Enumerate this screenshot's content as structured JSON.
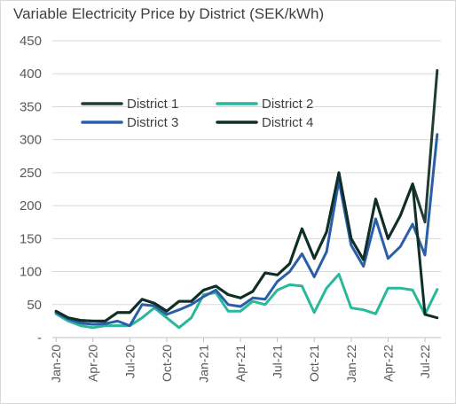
{
  "chart_data": {
    "type": "line",
    "title": "Variable Electricity Price by District (SEK/kWh)",
    "xlabel": "",
    "ylabel": "",
    "ylim": [
      0,
      450
    ],
    "y_ticks": [
      "-",
      "50",
      "100",
      "150",
      "200",
      "250",
      "300",
      "350",
      "400",
      "450"
    ],
    "y_tick_values": [
      0,
      50,
      100,
      150,
      200,
      250,
      300,
      350,
      400,
      450
    ],
    "grid": true,
    "legend_position": "top-left, inside plot",
    "x": [
      "Jan-20",
      "Feb-20",
      "Mar-20",
      "Apr-20",
      "May-20",
      "Jun-20",
      "Jul-20",
      "Aug-20",
      "Sep-20",
      "Oct-20",
      "Nov-20",
      "Dec-20",
      "Jan-21",
      "Feb-21",
      "Mar-21",
      "Apr-21",
      "May-21",
      "Jun-21",
      "Jul-21",
      "Aug-21",
      "Sep-21",
      "Oct-21",
      "Nov-21",
      "Dec-21",
      "Jan-22",
      "Feb-22",
      "Mar-22",
      "Apr-22",
      "May-22",
      "Jun-22",
      "Jul-22",
      "Aug-22"
    ],
    "x_tick_labels": [
      "Jan-20",
      "Apr-20",
      "Jul-20",
      "Oct-20",
      "Jan-21",
      "Apr-21",
      "Jul-21",
      "Oct-21",
      "Jan-22",
      "Apr-22",
      "Jul-22"
    ],
    "x_tick_indices": [
      0,
      3,
      6,
      9,
      12,
      15,
      18,
      21,
      24,
      27,
      30
    ],
    "series": [
      {
        "name": "District 1",
        "color": "#1f3d33",
        "width": 3,
        "values": [
          39,
          30,
          26,
          25,
          25,
          38,
          38,
          58,
          52,
          40,
          55,
          55,
          72,
          78,
          65,
          60,
          70,
          98,
          95,
          112,
          165,
          120,
          160,
          250,
          150,
          118,
          210,
          150,
          185,
          233,
          175,
          405
        ]
      },
      {
        "name": "District 2",
        "color": "#2ab89a",
        "width": 3,
        "values": [
          36,
          25,
          18,
          15,
          18,
          18,
          18,
          30,
          45,
          30,
          15,
          30,
          65,
          68,
          40,
          40,
          55,
          50,
          72,
          80,
          78,
          38,
          75,
          96,
          45,
          42,
          36,
          75,
          75,
          72,
          35,
          73
        ]
      },
      {
        "name": "District 3",
        "color": "#2a5fa8",
        "width": 3,
        "values": [
          38,
          28,
          22,
          20,
          21,
          25,
          18,
          50,
          48,
          35,
          42,
          50,
          62,
          72,
          50,
          47,
          60,
          58,
          85,
          100,
          127,
          92,
          130,
          238,
          140,
          108,
          180,
          120,
          138,
          172,
          125,
          308
        ]
      },
      {
        "name": "District 4",
        "color": "#0f2e27",
        "width": 3,
        "values": [
          40,
          30,
          26,
          25,
          25,
          38,
          38,
          58,
          52,
          40,
          55,
          55,
          72,
          78,
          65,
          60,
          70,
          98,
          95,
          112,
          165,
          120,
          160,
          250,
          150,
          118,
          210,
          150,
          185,
          233,
          35,
          30
        ]
      }
    ]
  }
}
